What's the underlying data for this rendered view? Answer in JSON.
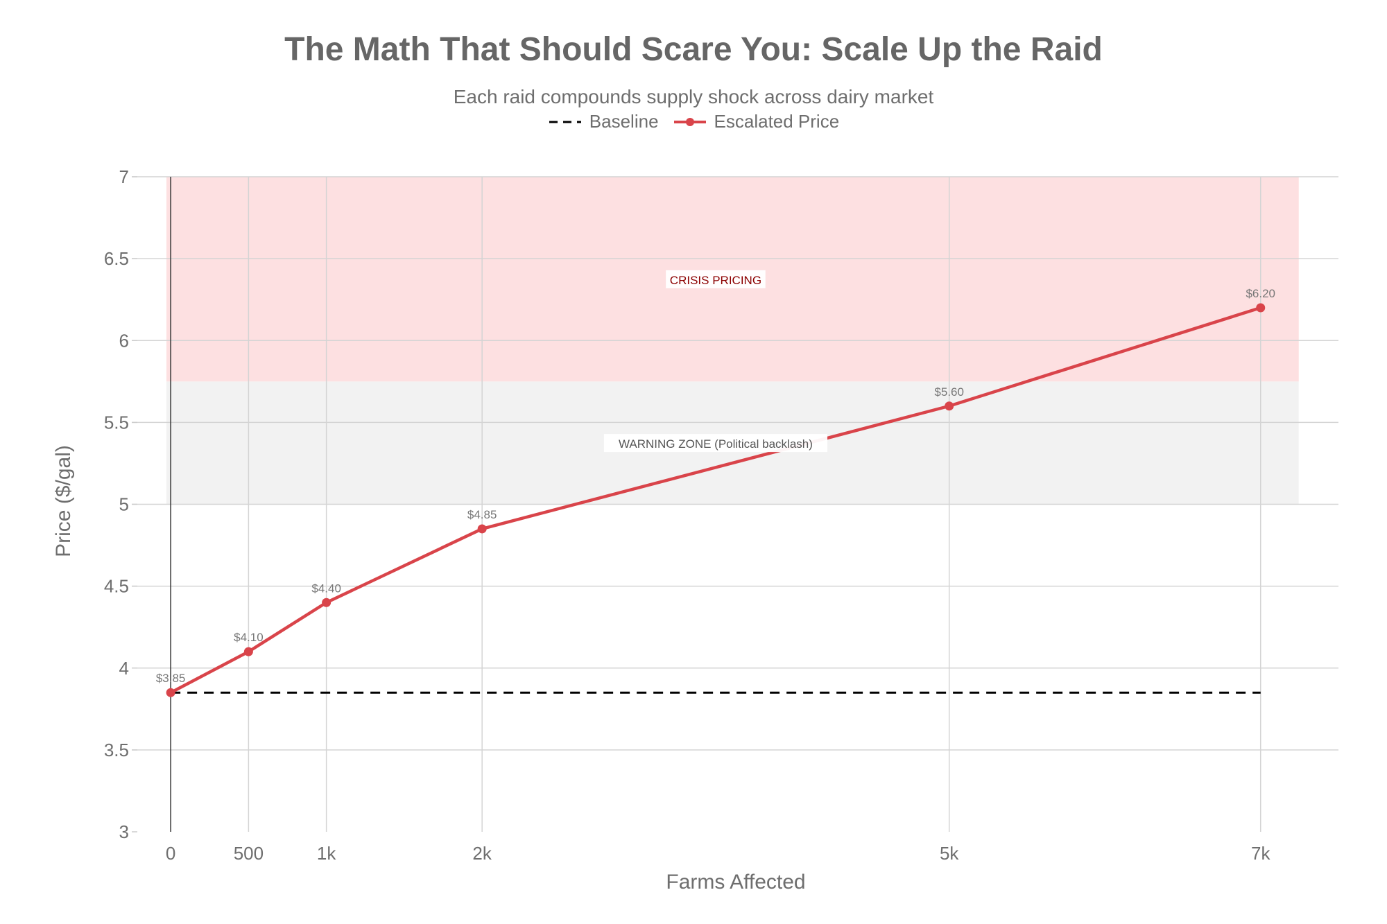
{
  "chart_data": {
    "type": "line",
    "title": "The Math That Should Scare You: Scale Up the Raid",
    "subtitle": "Each raid compounds supply shock across dairy market",
    "xlabel": "Farms Affected",
    "ylabel": "Price ($/gal)",
    "x": [
      0,
      500,
      1000,
      2000,
      5000,
      7000
    ],
    "x_tick_labels": [
      "0",
      "500",
      "1k",
      "2k",
      "5k",
      "7k"
    ],
    "y_ticks": [
      3,
      3.5,
      4,
      4.5,
      5,
      5.5,
      6,
      6.5,
      7
    ],
    "y_tick_labels": [
      "3",
      "3.5",
      "4",
      "4.5",
      "5",
      "5.5",
      "6",
      "6.5",
      "7"
    ],
    "xlim": [
      -250,
      7500
    ],
    "ylim": [
      3,
      7
    ],
    "grid": true,
    "legend_position": "top-center",
    "series": [
      {
        "name": "Baseline",
        "style": "dashed",
        "color": "#000000",
        "x": [
          0,
          7000
        ],
        "values": [
          3.85,
          3.85
        ]
      },
      {
        "name": "Escalated Price",
        "style": "solid-markers",
        "color": "#d9444a",
        "x": [
          0,
          500,
          1000,
          2000,
          5000,
          7000
        ],
        "values": [
          3.85,
          4.1,
          4.4,
          4.85,
          5.6,
          6.2
        ],
        "labels": [
          "$3.85",
          "$4.10",
          "$4.40",
          "$4.85",
          "$5.60",
          "$6.20"
        ]
      }
    ],
    "bands": [
      {
        "label": "WARNING ZONE (Political backlash)",
        "y0": 5.0,
        "y1": 5.75,
        "color": "#f2f2f2",
        "label_y": 5.37,
        "label_color": "#555555"
      },
      {
        "label": "CRISIS PRICING",
        "y0": 5.75,
        "y1": 7.0,
        "color": "#fde0e1",
        "label_y": 6.37,
        "label_color": "#8b0000"
      }
    ]
  }
}
